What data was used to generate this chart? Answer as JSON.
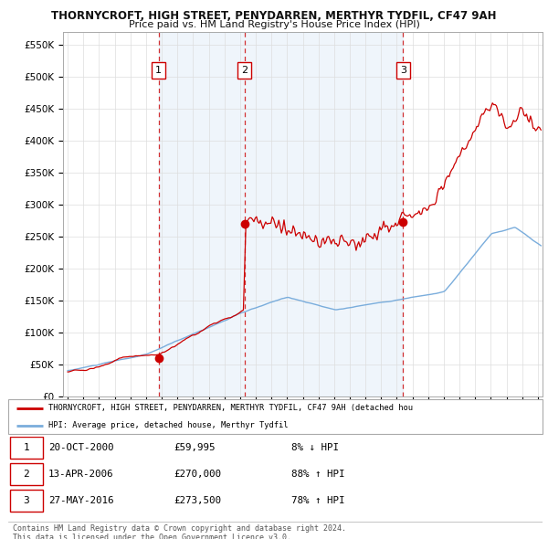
{
  "title_line1": "THORNYCROFT, HIGH STREET, PENYDARREN, MERTHYR TYDFIL, CF47 9AH",
  "title_line2": "Price paid vs. HM Land Registry's House Price Index (HPI)",
  "ylabel_ticks": [
    "£0",
    "£50K",
    "£100K",
    "£150K",
    "£200K",
    "£250K",
    "£300K",
    "£350K",
    "£400K",
    "£450K",
    "£500K",
    "£550K"
  ],
  "ytick_values": [
    0,
    50000,
    100000,
    150000,
    200000,
    250000,
    300000,
    350000,
    400000,
    450000,
    500000,
    550000
  ],
  "ylim": [
    0,
    570000
  ],
  "xlim_start": 1994.7,
  "xlim_end": 2025.3,
  "hpi_color": "#7aaddc",
  "hpi_fill_color": "#ddeeff",
  "price_color": "#cc0000",
  "dashed_line_color": "#cc0000",
  "background_color": "#ffffff",
  "grid_color": "#dddddd",
  "sale_points": [
    {
      "year_decimal": 2000.8,
      "price": 59995,
      "label": "1"
    },
    {
      "year_decimal": 2006.28,
      "price": 270000,
      "label": "2"
    },
    {
      "year_decimal": 2016.4,
      "price": 273500,
      "label": "3"
    }
  ],
  "shade_start": 2000.8,
  "shade_end": 2016.4,
  "legend_line1": "THORNYCROFT, HIGH STREET, PENYDARREN, MERTHYR TYDFIL, CF47 9AH (detached hou",
  "legend_line2": "HPI: Average price, detached house, Merthyr Tydfil",
  "table_rows": [
    {
      "num": "1",
      "date": "20-OCT-2000",
      "price": "£59,995",
      "pct": "8% ↓ HPI"
    },
    {
      "num": "2",
      "date": "13-APR-2006",
      "price": "£270,000",
      "pct": "88% ↑ HPI"
    },
    {
      "num": "3",
      "date": "27-MAY-2016",
      "price": "£273,500",
      "pct": "78% ↑ HPI"
    }
  ],
  "footer": "Contains HM Land Registry data © Crown copyright and database right 2024.\nThis data is licensed under the Open Government Licence v3.0."
}
